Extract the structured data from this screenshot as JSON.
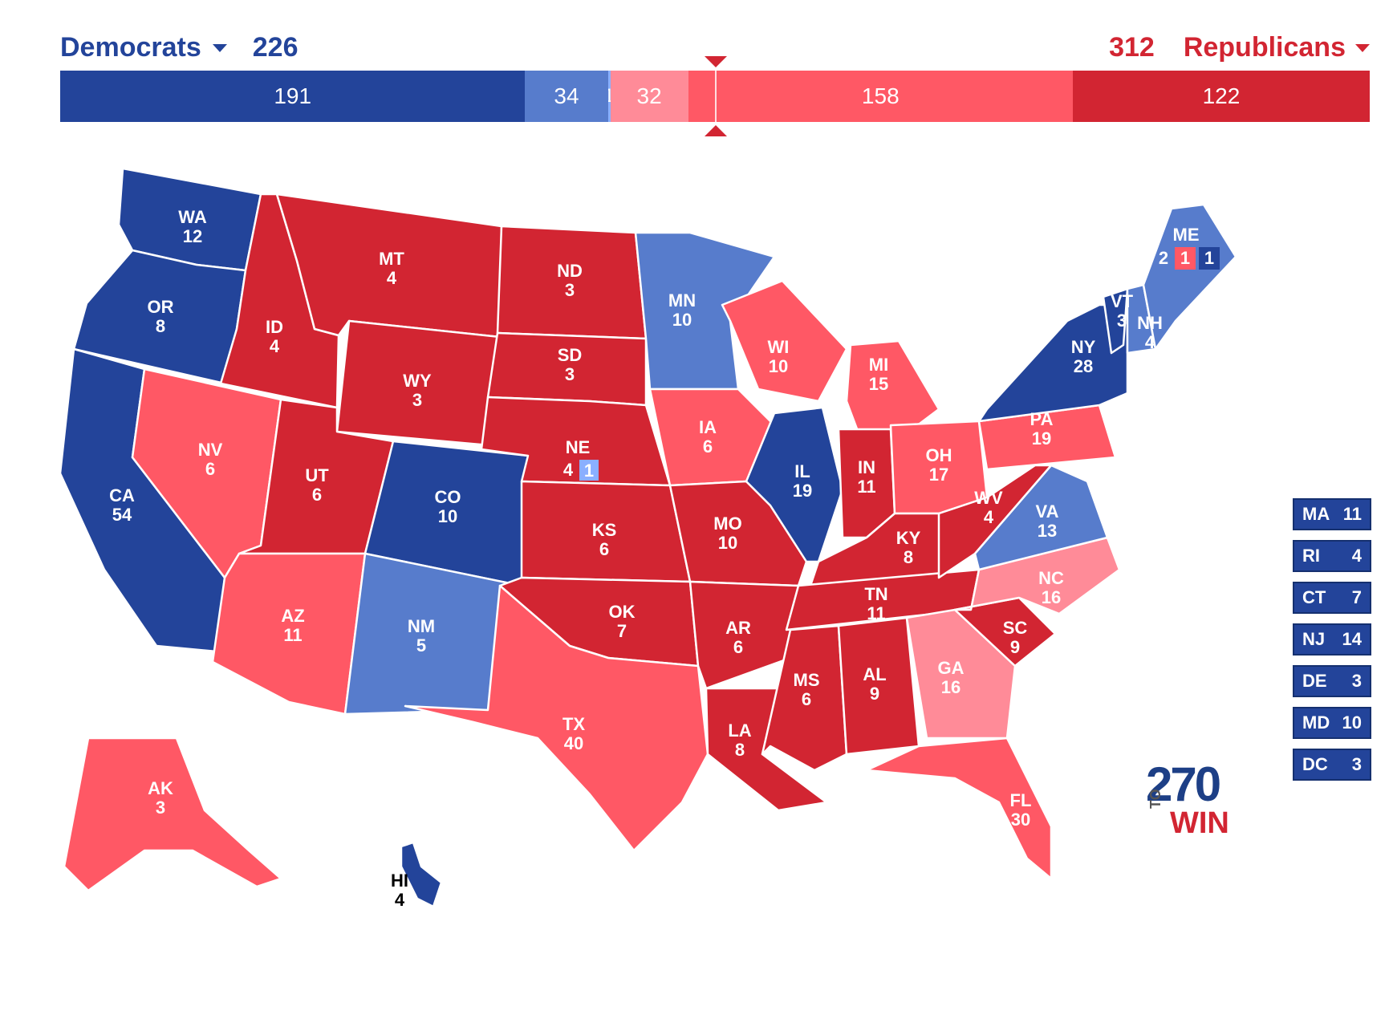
{
  "header": {
    "dem_label": "Democrats",
    "dem_total": "226",
    "rep_label": "Republicans",
    "rep_total": "312"
  },
  "colors": {
    "safe_dem": "#23449a",
    "likely_dem": "#577ccc",
    "lean_dem": "#8aafff",
    "tilt_rep": "#ff8b98",
    "likely_rep": "#ff5865",
    "safe_rep": "#d22532"
  },
  "bar_segments": [
    {
      "label": "191",
      "value": 191,
      "color": "#23449a"
    },
    {
      "label": "34",
      "value": 34,
      "color": "#577ccc"
    },
    {
      "label": "1",
      "value": 1,
      "color": "#8aafff"
    },
    {
      "label": "32",
      "value": 32,
      "color": "#ff8b98"
    },
    {
      "label": "158",
      "value": 158,
      "color": "#ff5865"
    },
    {
      "label": "122",
      "value": 122,
      "color": "#d22532"
    }
  ],
  "states": [
    {
      "abbr": "WA",
      "ev": "12",
      "rating": "safe_dem"
    },
    {
      "abbr": "OR",
      "ev": "8",
      "rating": "safe_dem"
    },
    {
      "abbr": "CA",
      "ev": "54",
      "rating": "safe_dem"
    },
    {
      "abbr": "NV",
      "ev": "6",
      "rating": "likely_rep"
    },
    {
      "abbr": "ID",
      "ev": "4",
      "rating": "safe_rep"
    },
    {
      "abbr": "MT",
      "ev": "4",
      "rating": "safe_rep"
    },
    {
      "abbr": "WY",
      "ev": "3",
      "rating": "safe_rep"
    },
    {
      "abbr": "UT",
      "ev": "6",
      "rating": "safe_rep"
    },
    {
      "abbr": "AZ",
      "ev": "11",
      "rating": "likely_rep"
    },
    {
      "abbr": "CO",
      "ev": "10",
      "rating": "safe_dem"
    },
    {
      "abbr": "NM",
      "ev": "5",
      "rating": "likely_dem"
    },
    {
      "abbr": "ND",
      "ev": "3",
      "rating": "safe_rep"
    },
    {
      "abbr": "SD",
      "ev": "3",
      "rating": "safe_rep"
    },
    {
      "abbr": "NE",
      "ev": "4",
      "rating": "safe_rep",
      "district_ev": "1",
      "district_rating": "lean_dem"
    },
    {
      "abbr": "KS",
      "ev": "6",
      "rating": "safe_rep"
    },
    {
      "abbr": "OK",
      "ev": "7",
      "rating": "safe_rep"
    },
    {
      "abbr": "TX",
      "ev": "40",
      "rating": "likely_rep"
    },
    {
      "abbr": "MN",
      "ev": "10",
      "rating": "likely_dem"
    },
    {
      "abbr": "IA",
      "ev": "6",
      "rating": "likely_rep"
    },
    {
      "abbr": "MO",
      "ev": "10",
      "rating": "safe_rep"
    },
    {
      "abbr": "AR",
      "ev": "6",
      "rating": "safe_rep"
    },
    {
      "abbr": "LA",
      "ev": "8",
      "rating": "safe_rep"
    },
    {
      "abbr": "WI",
      "ev": "10",
      "rating": "likely_rep"
    },
    {
      "abbr": "IL",
      "ev": "19",
      "rating": "safe_dem"
    },
    {
      "abbr": "MI",
      "ev": "15",
      "rating": "likely_rep"
    },
    {
      "abbr": "IN",
      "ev": "11",
      "rating": "safe_rep"
    },
    {
      "abbr": "OH",
      "ev": "17",
      "rating": "likely_rep"
    },
    {
      "abbr": "KY",
      "ev": "8",
      "rating": "safe_rep"
    },
    {
      "abbr": "TN",
      "ev": "11",
      "rating": "safe_rep"
    },
    {
      "abbr": "MS",
      "ev": "6",
      "rating": "safe_rep"
    },
    {
      "abbr": "AL",
      "ev": "9",
      "rating": "safe_rep"
    },
    {
      "abbr": "GA",
      "ev": "16",
      "rating": "tilt_rep"
    },
    {
      "abbr": "FL",
      "ev": "30",
      "rating": "likely_rep"
    },
    {
      "abbr": "SC",
      "ev": "9",
      "rating": "safe_rep"
    },
    {
      "abbr": "NC",
      "ev": "16",
      "rating": "tilt_rep"
    },
    {
      "abbr": "VA",
      "ev": "13",
      "rating": "likely_dem"
    },
    {
      "abbr": "WV",
      "ev": "4",
      "rating": "safe_rep"
    },
    {
      "abbr": "PA",
      "ev": "19",
      "rating": "likely_rep"
    },
    {
      "abbr": "NY",
      "ev": "28",
      "rating": "safe_dem"
    },
    {
      "abbr": "VT",
      "ev": "3",
      "rating": "safe_dem"
    },
    {
      "abbr": "NH",
      "ev": "4",
      "rating": "likely_dem"
    },
    {
      "abbr": "ME",
      "ev": "2",
      "rating": "likely_dem",
      "district_evs": [
        "1",
        "1"
      ],
      "district_ratings": [
        "likely_rep",
        "safe_dem"
      ]
    },
    {
      "abbr": "AK",
      "ev": "3",
      "rating": "likely_rep"
    },
    {
      "abbr": "HI",
      "ev": "4",
      "rating": "safe_dem"
    }
  ],
  "small_states": [
    {
      "abbr": "MA",
      "ev": "11",
      "rating": "safe_dem"
    },
    {
      "abbr": "RI",
      "ev": "4",
      "rating": "safe_dem"
    },
    {
      "abbr": "CT",
      "ev": "7",
      "rating": "safe_dem"
    },
    {
      "abbr": "NJ",
      "ev": "14",
      "rating": "safe_dem"
    },
    {
      "abbr": "DE",
      "ev": "3",
      "rating": "safe_dem"
    },
    {
      "abbr": "MD",
      "ev": "10",
      "rating": "safe_dem"
    },
    {
      "abbr": "DC",
      "ev": "3",
      "rating": "safe_dem"
    }
  ],
  "logo": {
    "number": "270",
    "to": "TO",
    "win": "WIN"
  }
}
